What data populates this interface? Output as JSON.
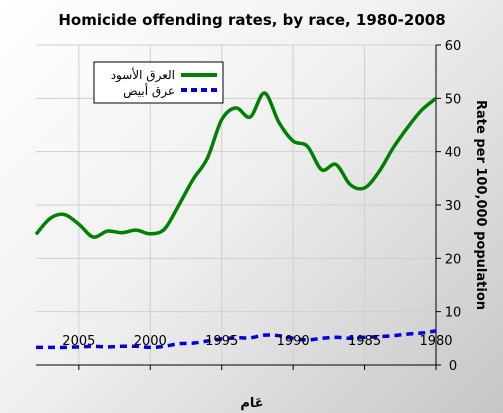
{
  "chart_data": {
    "type": "line",
    "title": "Homicide offending rates, by race, 1980-2008",
    "xlabel": "عَام",
    "ylabel": "Rate per 100,000 population",
    "xlim": [
      2008,
      1980
    ],
    "ylim": [
      0,
      60
    ],
    "x_ticks": [
      2005,
      2000,
      1995,
      1990,
      1985,
      1980
    ],
    "y_ticks": [
      0,
      10,
      20,
      30,
      40,
      50,
      60
    ],
    "grid": true,
    "legend_position": "top-left",
    "x": [
      2008,
      2007,
      2006,
      2005,
      2004,
      2003,
      2002,
      2001,
      2000,
      1999,
      1998,
      1997,
      1996,
      1995,
      1994,
      1993,
      1992,
      1991,
      1990,
      1989,
      1988,
      1987,
      1986,
      1985,
      1984,
      1983,
      1982,
      1981,
      1980
    ],
    "series": [
      {
        "name": "العرق الأسود",
        "color": "#008000",
        "style": "solid",
        "values": [
          24.5,
          27.5,
          28.2,
          26.4,
          24.0,
          25.1,
          24.8,
          25.3,
          24.6,
          25.5,
          30.0,
          34.8,
          38.8,
          46.0,
          48.2,
          46.5,
          51.0,
          45.5,
          42.0,
          41.0,
          36.6,
          37.6,
          33.8,
          33.2,
          36.2,
          40.7,
          44.5,
          47.8,
          50.0
        ]
      },
      {
        "name": "عرق أبيض",
        "color": "#0000dd",
        "style": "dashed",
        "values": [
          3.3,
          3.3,
          3.3,
          3.4,
          3.5,
          3.4,
          3.5,
          3.5,
          3.3,
          3.5,
          4.0,
          4.1,
          4.5,
          4.9,
          5.1,
          5.1,
          5.6,
          5.5,
          5.0,
          4.7,
          5.0,
          5.2,
          5.0,
          5.2,
          5.3,
          5.5,
          5.8,
          6.0,
          6.4
        ]
      }
    ]
  }
}
